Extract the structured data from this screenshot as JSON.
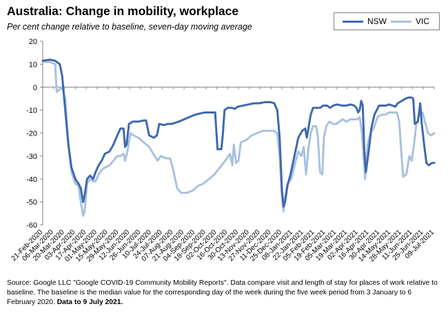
{
  "chart_data": {
    "type": "line",
    "title": "Australia: Change in mobility, workplace",
    "subtitle": "Per cent change relative to baseline, seven-day moving average",
    "xlabel": "",
    "ylabel": "",
    "ylim": [
      -60,
      20
    ],
    "yticks": [
      20,
      10,
      0,
      -10,
      -20,
      -30,
      -40,
      -50,
      -60
    ],
    "grid": false,
    "legend": "top-right",
    "x_start": "2020-02-21",
    "x_end": "2021-07-09",
    "x_tick_labels": [
      "21-Feb-2020",
      "06-Mar-2020",
      "20-Mar-2020",
      "03-Apr-2020",
      "17-Apr-2020",
      "01-May-2020",
      "15-May-2020",
      "29-May-2020",
      "12-Jun-2020",
      "26-Jun-2020",
      "10-Jul-2020",
      "24-Jul-2020",
      "07-Aug-2020",
      "21-Aug-2020",
      "04-Sep-2020",
      "18-Sep-2020",
      "02-Oct-2020",
      "16-Oct-2020",
      "30-Oct-2020",
      "13-Nov-2020",
      "27-Nov-2020",
      "11-Dec-2020",
      "25-Dec-2020",
      "08-Jan-2021",
      "22-Jan-2021",
      "05-Feb-2021",
      "19-Feb-2021",
      "05-Mar-2021",
      "19-Mar-2021",
      "02-Apr-2021",
      "16-Apr-2021",
      "30-Apr-2021",
      "14-May-2021",
      "28-May-2021",
      "11-Jun-2021",
      "25-Jun-2021",
      "09-Jul-2021"
    ],
    "series": [
      {
        "name": "NSW",
        "color": "#3f68b0",
        "points": [
          [
            "2020-02-21",
            11.5
          ],
          [
            "2020-03-01",
            12
          ],
          [
            "2020-03-08",
            11.5
          ],
          [
            "2020-03-14",
            10
          ],
          [
            "2020-03-17",
            5
          ],
          [
            "2020-03-21",
            -10
          ],
          [
            "2020-03-25",
            -25
          ],
          [
            "2020-03-29",
            -35
          ],
          [
            "2020-04-03",
            -40
          ],
          [
            "2020-04-07",
            -42
          ],
          [
            "2020-04-10",
            -44
          ],
          [
            "2020-04-13",
            -50
          ],
          [
            "2020-04-15",
            -47
          ],
          [
            "2020-04-18",
            -40
          ],
          [
            "2020-04-22",
            -38.5
          ],
          [
            "2020-04-26",
            -40
          ],
          [
            "2020-04-29",
            -37
          ],
          [
            "2020-05-03",
            -34
          ],
          [
            "2020-05-07",
            -32
          ],
          [
            "2020-05-11",
            -29
          ],
          [
            "2020-05-17",
            -28
          ],
          [
            "2020-05-22",
            -25
          ],
          [
            "2020-05-27",
            -21
          ],
          [
            "2020-05-31",
            -18
          ],
          [
            "2020-06-04",
            -18
          ],
          [
            "2020-06-06",
            -26
          ],
          [
            "2020-06-08",
            -25
          ],
          [
            "2020-06-11",
            -16
          ],
          [
            "2020-06-16",
            -15
          ],
          [
            "2020-06-23",
            -15
          ],
          [
            "2020-06-30",
            -14.5
          ],
          [
            "2020-07-03",
            -14.5
          ],
          [
            "2020-07-07",
            -21
          ],
          [
            "2020-07-13",
            -22
          ],
          [
            "2020-07-17",
            -21
          ],
          [
            "2020-07-20",
            -16
          ],
          [
            "2020-07-26",
            -16.5
          ],
          [
            "2020-07-31",
            -16
          ],
          [
            "2020-08-05",
            -16
          ],
          [
            "2020-08-14",
            -15
          ],
          [
            "2020-08-21",
            -14
          ],
          [
            "2020-08-28",
            -13
          ],
          [
            "2020-09-04",
            -12
          ],
          [
            "2020-09-10",
            -11.5
          ],
          [
            "2020-09-17",
            -11
          ],
          [
            "2020-09-24",
            -11
          ],
          [
            "2020-09-30",
            -11
          ],
          [
            "2020-10-03",
            -27
          ],
          [
            "2020-10-08",
            -27
          ],
          [
            "2020-10-10",
            -20
          ],
          [
            "2020-10-12",
            -10
          ],
          [
            "2020-10-16",
            -9
          ],
          [
            "2020-10-22",
            -9
          ],
          [
            "2020-10-25",
            -9.5
          ],
          [
            "2020-10-29",
            -8.5
          ],
          [
            "2020-11-05",
            -8
          ],
          [
            "2020-11-12",
            -7.5
          ],
          [
            "2020-11-19",
            -7
          ],
          [
            "2020-11-26",
            -7
          ],
          [
            "2020-12-03",
            -6.5
          ],
          [
            "2020-12-10",
            -6.5
          ],
          [
            "2020-12-15",
            -7
          ],
          [
            "2020-12-19",
            -10
          ],
          [
            "2020-12-22",
            -22
          ],
          [
            "2020-12-25",
            -45
          ],
          [
            "2020-12-27",
            -52
          ],
          [
            "2020-12-29",
            -50
          ],
          [
            "2021-01-01",
            -43
          ],
          [
            "2021-01-05",
            -38
          ],
          [
            "2021-01-10",
            -30
          ],
          [
            "2021-01-15",
            -22
          ],
          [
            "2021-01-20",
            -19
          ],
          [
            "2021-01-24",
            -18
          ],
          [
            "2021-01-26",
            -22
          ],
          [
            "2021-01-28",
            -18
          ],
          [
            "2021-01-31",
            -12
          ],
          [
            "2021-02-03",
            -9
          ],
          [
            "2021-02-07",
            -9
          ],
          [
            "2021-02-12",
            -9
          ],
          [
            "2021-02-16",
            -8
          ],
          [
            "2021-02-21",
            -8
          ],
          [
            "2021-02-25",
            -9
          ],
          [
            "2021-03-01",
            -8
          ],
          [
            "2021-03-06",
            -7.5
          ],
          [
            "2021-03-12",
            -8
          ],
          [
            "2021-03-18",
            -8
          ],
          [
            "2021-03-23",
            -7.5
          ],
          [
            "2021-03-28",
            -8
          ],
          [
            "2021-03-31",
            -9
          ],
          [
            "2021-04-02",
            -11
          ],
          [
            "2021-04-04",
            -10
          ],
          [
            "2021-04-06",
            -6
          ],
          [
            "2021-04-08",
            -8
          ],
          [
            "2021-04-10",
            -28
          ],
          [
            "2021-04-12",
            -37
          ],
          [
            "2021-04-14",
            -32
          ],
          [
            "2021-04-16",
            -27
          ],
          [
            "2021-04-19",
            -18
          ],
          [
            "2021-04-23",
            -12
          ],
          [
            "2021-04-26",
            -10
          ],
          [
            "2021-04-29",
            -8
          ],
          [
            "2021-05-04",
            -8
          ],
          [
            "2021-05-08",
            -8
          ],
          [
            "2021-05-12",
            -7.5
          ],
          [
            "2021-05-16",
            -8
          ],
          [
            "2021-05-20",
            -8.5
          ],
          [
            "2021-05-23",
            -7
          ],
          [
            "2021-05-28",
            -6
          ],
          [
            "2021-06-02",
            -5
          ],
          [
            "2021-06-06",
            -4.5
          ],
          [
            "2021-06-10",
            -4.5
          ],
          [
            "2021-06-12",
            -5
          ],
          [
            "2021-06-14",
            -16
          ],
          [
            "2021-06-18",
            -15
          ],
          [
            "2021-06-21",
            -7
          ],
          [
            "2021-06-23",
            -16
          ],
          [
            "2021-06-26",
            -25
          ],
          [
            "2021-06-29",
            -33
          ],
          [
            "2021-07-02",
            -34
          ],
          [
            "2021-07-06",
            -33
          ],
          [
            "2021-07-09",
            -33
          ]
        ]
      },
      {
        "name": "VIC",
        "color": "#a9c1e0",
        "points": [
          [
            "2020-02-21",
            11
          ],
          [
            "2020-03-01",
            11
          ],
          [
            "2020-03-08",
            10
          ],
          [
            "2020-03-10",
            -2
          ],
          [
            "2020-03-14",
            -1
          ],
          [
            "2020-03-17",
            0
          ],
          [
            "2020-03-21",
            -5
          ],
          [
            "2020-03-25",
            -25
          ],
          [
            "2020-03-29",
            -37
          ],
          [
            "2020-04-03",
            -42
          ],
          [
            "2020-04-07",
            -43
          ],
          [
            "2020-04-10",
            -50
          ],
          [
            "2020-04-13",
            -56
          ],
          [
            "2020-04-15",
            -54
          ],
          [
            "2020-04-18",
            -42
          ],
          [
            "2020-04-22",
            -40
          ],
          [
            "2020-04-26",
            -41
          ],
          [
            "2020-04-29",
            -41
          ],
          [
            "2020-05-03",
            -38
          ],
          [
            "2020-05-07",
            -36
          ],
          [
            "2020-05-11",
            -35
          ],
          [
            "2020-05-17",
            -34
          ],
          [
            "2020-05-22",
            -32
          ],
          [
            "2020-05-27",
            -30
          ],
          [
            "2020-05-31",
            -30
          ],
          [
            "2020-06-04",
            -29
          ],
          [
            "2020-06-06",
            -32
          ],
          [
            "2020-06-09",
            -28
          ],
          [
            "2020-06-13",
            -20
          ],
          [
            "2020-06-17",
            -21
          ],
          [
            "2020-06-23",
            -22
          ],
          [
            "2020-06-30",
            -24
          ],
          [
            "2020-07-07",
            -26
          ],
          [
            "2020-07-14",
            -30
          ],
          [
            "2020-07-18",
            -32
          ],
          [
            "2020-07-22",
            -30
          ],
          [
            "2020-07-29",
            -31
          ],
          [
            "2020-08-03",
            -31
          ],
          [
            "2020-08-07",
            -36
          ],
          [
            "2020-08-12",
            -44
          ],
          [
            "2020-08-17",
            -46
          ],
          [
            "2020-08-25",
            -46
          ],
          [
            "2020-09-01",
            -45
          ],
          [
            "2020-09-08",
            -43
          ],
          [
            "2020-09-15",
            -42
          ],
          [
            "2020-09-22",
            -40
          ],
          [
            "2020-09-29",
            -38
          ],
          [
            "2020-10-06",
            -35
          ],
          [
            "2020-10-13",
            -32
          ],
          [
            "2020-10-19",
            -29
          ],
          [
            "2020-10-22",
            -34
          ],
          [
            "2020-10-24",
            -25
          ],
          [
            "2020-10-27",
            -33
          ],
          [
            "2020-10-30",
            -32
          ],
          [
            "2020-11-02",
            -24
          ],
          [
            "2020-11-09",
            -23
          ],
          [
            "2020-11-16",
            -21
          ],
          [
            "2020-11-23",
            -20
          ],
          [
            "2020-11-30",
            -19
          ],
          [
            "2020-12-07",
            -19
          ],
          [
            "2020-12-14",
            -19
          ],
          [
            "2020-12-19",
            -20
          ],
          [
            "2020-12-22",
            -30
          ],
          [
            "2020-12-25",
            -48
          ],
          [
            "2020-12-27",
            -54
          ],
          [
            "2020-12-29",
            -48
          ],
          [
            "2021-01-01",
            -42
          ],
          [
            "2021-01-06",
            -40
          ],
          [
            "2021-01-11",
            -33
          ],
          [
            "2021-01-15",
            -28
          ],
          [
            "2021-01-19",
            -30
          ],
          [
            "2021-01-22",
            -26
          ],
          [
            "2021-01-25",
            -38
          ],
          [
            "2021-01-28",
            -27
          ],
          [
            "2021-01-31",
            -20
          ],
          [
            "2021-02-03",
            -17
          ],
          [
            "2021-02-07",
            -17
          ],
          [
            "2021-02-09",
            -21
          ],
          [
            "2021-02-12",
            -37
          ],
          [
            "2021-02-15",
            -38
          ],
          [
            "2021-02-17",
            -22
          ],
          [
            "2021-02-20",
            -17
          ],
          [
            "2021-02-24",
            -15
          ],
          [
            "2021-03-01",
            -16
          ],
          [
            "2021-03-05",
            -16
          ],
          [
            "2021-03-09",
            -15
          ],
          [
            "2021-03-13",
            -14
          ],
          [
            "2021-03-18",
            -15
          ],
          [
            "2021-03-23",
            -14
          ],
          [
            "2021-03-28",
            -14
          ],
          [
            "2021-04-01",
            -14
          ],
          [
            "2021-04-04",
            -13
          ],
          [
            "2021-04-07",
            -20
          ],
          [
            "2021-04-11",
            -40
          ],
          [
            "2021-04-14",
            -25
          ],
          [
            "2021-04-18",
            -20
          ],
          [
            "2021-04-22",
            -18
          ],
          [
            "2021-04-27",
            -13
          ],
          [
            "2021-05-02",
            -12
          ],
          [
            "2021-05-07",
            -12
          ],
          [
            "2021-05-12",
            -11
          ],
          [
            "2021-05-17",
            -11
          ],
          [
            "2021-05-22",
            -11
          ],
          [
            "2021-05-25",
            -15
          ],
          [
            "2021-05-28",
            -30
          ],
          [
            "2021-05-30",
            -39
          ],
          [
            "2021-06-03",
            -38
          ],
          [
            "2021-06-07",
            -30
          ],
          [
            "2021-06-10",
            -32
          ],
          [
            "2021-06-13",
            -25
          ],
          [
            "2021-06-16",
            -16
          ],
          [
            "2021-06-20",
            -12
          ],
          [
            "2021-06-24",
            -11
          ],
          [
            "2021-06-27",
            -15
          ],
          [
            "2021-07-01",
            -20
          ],
          [
            "2021-07-05",
            -21
          ],
          [
            "2021-07-09",
            -20
          ]
        ]
      }
    ]
  },
  "source_text": "Source: Google LLC \"Google COVID-19 Community Mobility Reports\".  Data compare visit and length of stay for places of work relative to baseline.  The baseline is the median value for the corresponding day of the week during the five week period from 3 January to 6 February 2020.",
  "source_bold": "Data to 9 July 2021."
}
